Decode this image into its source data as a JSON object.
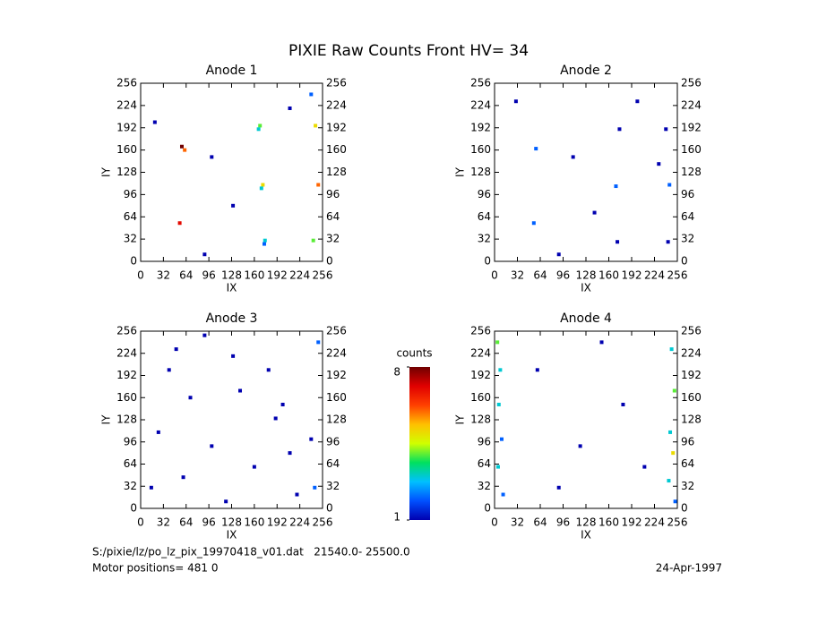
{
  "title": "PIXIE Raw Counts Front HV= 34",
  "chart_data": [
    {
      "type": "scatter",
      "title": "Anode 1",
      "xlabel": "IX",
      "ylabel": "IY",
      "xlim": [
        0,
        256
      ],
      "ylim": [
        0,
        256
      ],
      "xticks": [
        0,
        32,
        64,
        96,
        128,
        160,
        192,
        224,
        256
      ],
      "yticks": [
        0,
        32,
        64,
        96,
        128,
        160,
        192,
        224,
        256
      ],
      "right_axis": true,
      "x": [
        58,
        62,
        55,
        172,
        168,
        175,
        170,
        166,
        174,
        246,
        250,
        243,
        20,
        100,
        130,
        210,
        90,
        240
      ],
      "y": [
        165,
        160,
        55,
        110,
        195,
        30,
        105,
        190,
        25,
        195,
        110,
        30,
        200,
        150,
        80,
        220,
        10,
        240
      ],
      "values": [
        8,
        6,
        7,
        5,
        4,
        3,
        3,
        3,
        2,
        5,
        6,
        4,
        1,
        1,
        1,
        1,
        1,
        2
      ]
    },
    {
      "type": "scatter",
      "title": "Anode 2",
      "xlabel": "IX",
      "ylabel": "IY",
      "xlim": [
        0,
        256
      ],
      "ylim": [
        0,
        256
      ],
      "xticks": [
        0,
        32,
        64,
        96,
        128,
        160,
        192,
        224,
        256
      ],
      "yticks": [
        0,
        32,
        64,
        96,
        128,
        160,
        192,
        224,
        256
      ],
      "right_axis": true,
      "x": [
        58,
        55,
        170,
        175,
        172,
        245,
        240,
        243,
        30,
        110,
        140,
        200,
        90,
        230
      ],
      "y": [
        162,
        55,
        108,
        190,
        28,
        110,
        190,
        28,
        230,
        150,
        70,
        230,
        10,
        140
      ],
      "values": [
        2,
        2,
        2,
        1,
        1,
        2,
        1,
        1,
        1,
        1,
        1,
        1,
        1,
        1
      ]
    },
    {
      "type": "scatter",
      "title": "Anode 3",
      "xlabel": "IX",
      "ylabel": "IY",
      "xlim": [
        0,
        256
      ],
      "ylim": [
        0,
        256
      ],
      "xticks": [
        0,
        32,
        64,
        96,
        128,
        160,
        192,
        224,
        256
      ],
      "yticks": [
        0,
        32,
        64,
        96,
        128,
        160,
        192,
        224,
        256
      ],
      "right_axis": true,
      "x": [
        15,
        40,
        70,
        100,
        130,
        160,
        190,
        220,
        250,
        25,
        60,
        90,
        140,
        180,
        210,
        245,
        50,
        120,
        200,
        240
      ],
      "y": [
        30,
        200,
        160,
        90,
        220,
        60,
        130,
        20,
        240,
        110,
        45,
        250,
        170,
        200,
        80,
        30,
        230,
        10,
        150,
        100
      ],
      "values": [
        1,
        1,
        1,
        1,
        1,
        1,
        1,
        1,
        2,
        1,
        1,
        1,
        1,
        1,
        1,
        2,
        1,
        1,
        1,
        1
      ]
    },
    {
      "type": "scatter",
      "title": "Anode 4",
      "xlabel": "IX",
      "ylabel": "IY",
      "xlim": [
        0,
        256
      ],
      "ylim": [
        0,
        256
      ],
      "xticks": [
        0,
        32,
        64,
        96,
        128,
        160,
        192,
        224,
        256
      ],
      "yticks": [
        0,
        32,
        64,
        96,
        128,
        160,
        192,
        224,
        256
      ],
      "right_axis": true,
      "x": [
        4,
        8,
        6,
        10,
        5,
        12,
        248,
        252,
        246,
        250,
        244,
        253,
        60,
        120,
        180,
        90,
        150,
        210
      ],
      "y": [
        240,
        200,
        150,
        100,
        60,
        20,
        230,
        170,
        110,
        80,
        40,
        10,
        200,
        90,
        150,
        30,
        240,
        60
      ],
      "values": [
        4,
        3,
        3,
        2,
        3,
        2,
        3,
        4,
        3,
        5,
        3,
        2,
        1,
        1,
        1,
        1,
        1,
        1
      ]
    }
  ],
  "colorbar": {
    "label": "counts",
    "lim": [
      1,
      8
    ],
    "ticks": [
      1,
      8
    ],
    "colormap": [
      "#0000b0",
      "#0050ff",
      "#00c0ff",
      "#00e060",
      "#d0ff00",
      "#ffc000",
      "#ff4000",
      "#e00000",
      "#700000"
    ]
  },
  "footer": {
    "file": "S:/pixie/lz/po_lz_pix_19970418_v01.dat   21540.0- 25500.0",
    "motor": "Motor positions= 481 0",
    "date": "24-Apr-1997"
  }
}
